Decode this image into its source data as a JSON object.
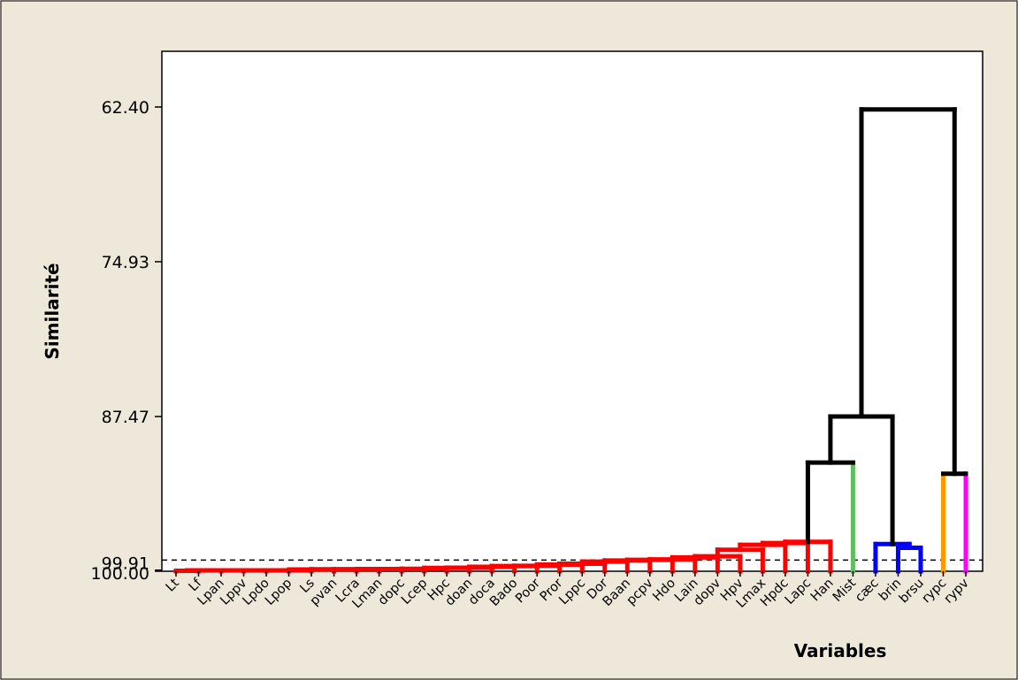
{
  "chart_data": {
    "type": "dendrogram",
    "title": "",
    "xlabel": "Variables",
    "ylabel": "Similarité",
    "y_ticks": [
      "62.40",
      "74.93",
      "87.47",
      "99.91",
      "100.00"
    ],
    "ylim": [
      100.0,
      62.4
    ],
    "cut_line": 99.1,
    "leaves": [
      "Lt",
      "Lf",
      "Lpan",
      "Lppv",
      "Lpdo",
      "Lpop",
      "Ls",
      "pvan",
      "Lcra",
      "Lman",
      "dopc",
      "Lcep",
      "Hpc",
      "doan",
      "doca",
      "Bado",
      "Poor",
      "Pror",
      "Lppc",
      "Dor",
      "Baan",
      "pcpv",
      "Hdo",
      "Lain",
      "dopv",
      "Hpv",
      "Lmax",
      "Hpdc",
      "Lapc",
      "Han",
      "Mist",
      "cæc",
      "brin",
      "brsu",
      "rypc",
      "rypv"
    ],
    "merges": [
      {
        "a": 0,
        "b": 1,
        "sim": 99.96,
        "color": "#ff0000"
      },
      {
        "a": 36,
        "b": 2,
        "sim": 99.93,
        "color": "#ff0000"
      },
      {
        "a": 37,
        "b": 3,
        "sim": 99.93,
        "color": "#ff0000"
      },
      {
        "a": 38,
        "b": 4,
        "sim": 99.93,
        "color": "#ff0000"
      },
      {
        "a": 39,
        "b": 5,
        "sim": 99.93,
        "color": "#ff0000"
      },
      {
        "a": 40,
        "b": 6,
        "sim": 99.93,
        "color": "#ff0000"
      },
      {
        "a": 41,
        "b": 7,
        "sim": 99.86,
        "color": "#ff0000"
      },
      {
        "a": 42,
        "b": 8,
        "sim": 99.84,
        "color": "#ff0000"
      },
      {
        "a": 43,
        "b": 9,
        "sim": 99.84,
        "color": "#ff0000"
      },
      {
        "a": 44,
        "b": 10,
        "sim": 99.82,
        "color": "#ff0000"
      },
      {
        "a": 45,
        "b": 11,
        "sim": 99.82,
        "color": "#ff0000"
      },
      {
        "a": 46,
        "b": 12,
        "sim": 99.8,
        "color": "#ff0000"
      },
      {
        "a": 47,
        "b": 13,
        "sim": 99.73,
        "color": "#ff0000"
      },
      {
        "a": 48,
        "b": 14,
        "sim": 99.71,
        "color": "#ff0000"
      },
      {
        "a": 49,
        "b": 15,
        "sim": 99.64,
        "color": "#ff0000"
      },
      {
        "a": 50,
        "b": 16,
        "sim": 99.58,
        "color": "#ff0000"
      },
      {
        "a": 51,
        "b": 17,
        "sim": 99.56,
        "color": "#ff0000"
      },
      {
        "a": 52,
        "b": 18,
        "sim": 99.46,
        "color": "#ff0000"
      },
      {
        "a": 53,
        "b": 19,
        "sim": 99.39,
        "color": "#ff0000"
      },
      {
        "a": 54,
        "b": 20,
        "sim": 99.22,
        "color": "#ff0000"
      },
      {
        "a": 55,
        "b": 21,
        "sim": 99.13,
        "color": "#ff0000"
      },
      {
        "a": 56,
        "b": 22,
        "sim": 99.08,
        "color": "#ff0000"
      },
      {
        "a": 57,
        "b": 23,
        "sim": 99.04,
        "color": "#ff0000"
      },
      {
        "a": 58,
        "b": 24,
        "sim": 98.88,
        "color": "#ff0000"
      },
      {
        "a": 59,
        "b": 25,
        "sim": 98.79,
        "color": "#ff0000"
      },
      {
        "a": 60,
        "b": 26,
        "sim": 98.26,
        "color": "#ff0000"
      },
      {
        "a": 61,
        "b": 27,
        "sim": 97.86,
        "color": "#ff0000"
      },
      {
        "a": 62,
        "b": 28,
        "sim": 97.72,
        "color": "#ff0000"
      },
      {
        "a": 63,
        "b": 29,
        "sim": 97.62,
        "color": "#ff0000"
      },
      {
        "a": 64,
        "b": 30,
        "sim": 91.2,
        "color": "#000000"
      },
      {
        "a": 32,
        "b": 33,
        "sim": 98.1,
        "color": "#0000ff"
      },
      {
        "a": 31,
        "b": 66,
        "sim": 97.8,
        "color": "#0000ff"
      },
      {
        "a": 65,
        "b": 67,
        "sim": 87.47,
        "color": "#000000"
      },
      {
        "a": 34,
        "b": 35,
        "sim": 92.1,
        "color": "#000000"
      },
      {
        "a": 68,
        "b": 69,
        "sim": 62.6,
        "color": "#000000"
      }
    ],
    "leaf_colors": {
      "30": "#5fbf5f",
      "34": "#ff9900",
      "35": "#ff00ff"
    }
  }
}
